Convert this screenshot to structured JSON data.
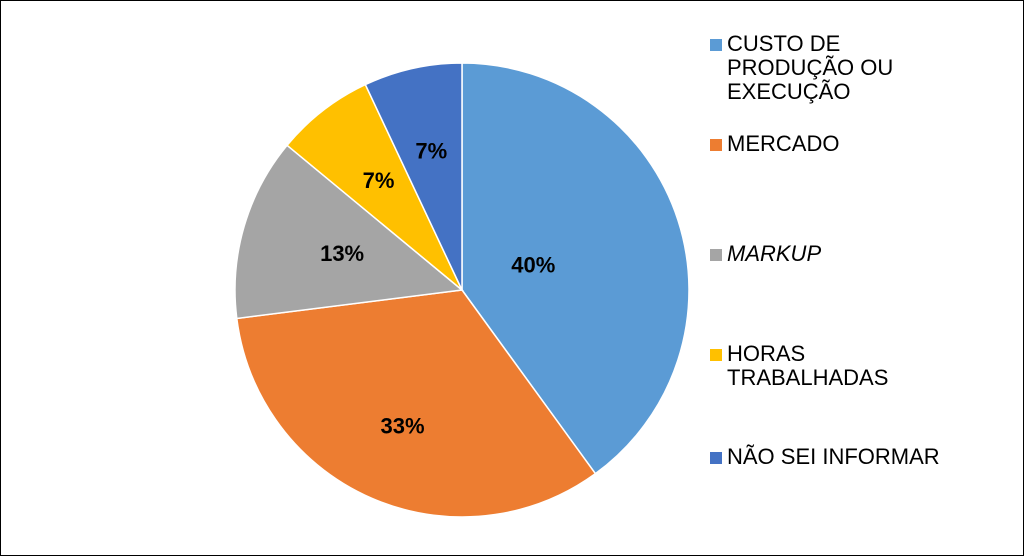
{
  "chart_data": {
    "type": "pie",
    "categories": [
      "CUSTO DE PRODUÇÃO OU EXECUÇÃO",
      "MERCADO",
      "MARKUP",
      "HORAS TRABALHADAS",
      "NÃO SEI INFORMAR"
    ],
    "values": [
      40,
      33,
      13,
      7,
      7
    ],
    "value_labels": [
      "40%",
      "33%",
      "13%",
      "7%",
      "7%"
    ],
    "colors": [
      "#5b9bd5",
      "#ed7d31",
      "#a5a5a5",
      "#ffc000",
      "#4472c4"
    ],
    "legend": "right"
  }
}
